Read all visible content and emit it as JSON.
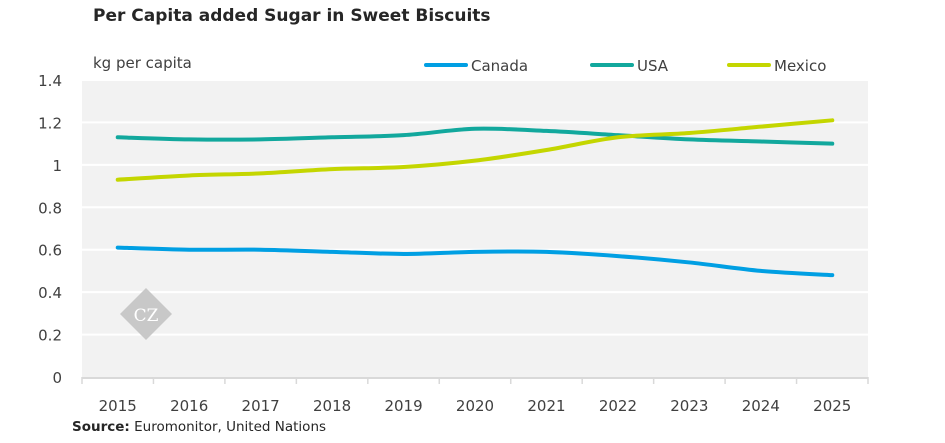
{
  "chart_data": {
    "type": "line",
    "title": "Per Capita added Sugar in Sweet Biscuits",
    "ylabel": "kg per capita",
    "xlabel": "",
    "categories": [
      "2015",
      "2016",
      "2017",
      "2018",
      "2019",
      "2020",
      "2021",
      "2022",
      "2023",
      "2024",
      "2025"
    ],
    "ylim": [
      0,
      1.4
    ],
    "yticks": [
      "0",
      "0.2",
      "0.4",
      "0.6",
      "0.8",
      "1",
      "1.2",
      "1.4"
    ],
    "ytick_values": [
      0,
      0.2,
      0.4,
      0.6,
      0.8,
      1.0,
      1.2,
      1.4
    ],
    "grid": true,
    "legend_position": "top-right",
    "series": [
      {
        "name": "Canada",
        "color": "#009FE3",
        "values": [
          0.61,
          0.6,
          0.6,
          0.59,
          0.58,
          0.59,
          0.59,
          0.57,
          0.54,
          0.5,
          0.48
        ]
      },
      {
        "name": "USA",
        "color": "#12A89D",
        "values": [
          1.13,
          1.12,
          1.12,
          1.13,
          1.14,
          1.17,
          1.16,
          1.14,
          1.12,
          1.11,
          1.1
        ]
      },
      {
        "name": "Mexico",
        "color": "#C4D600",
        "values": [
          0.93,
          0.95,
          0.96,
          0.98,
          0.99,
          1.02,
          1.07,
          1.13,
          1.15,
          1.18,
          1.21
        ]
      }
    ],
    "source_label": "Source:",
    "source_text": " Euromonitor, United Nations",
    "watermark": "CZ"
  }
}
